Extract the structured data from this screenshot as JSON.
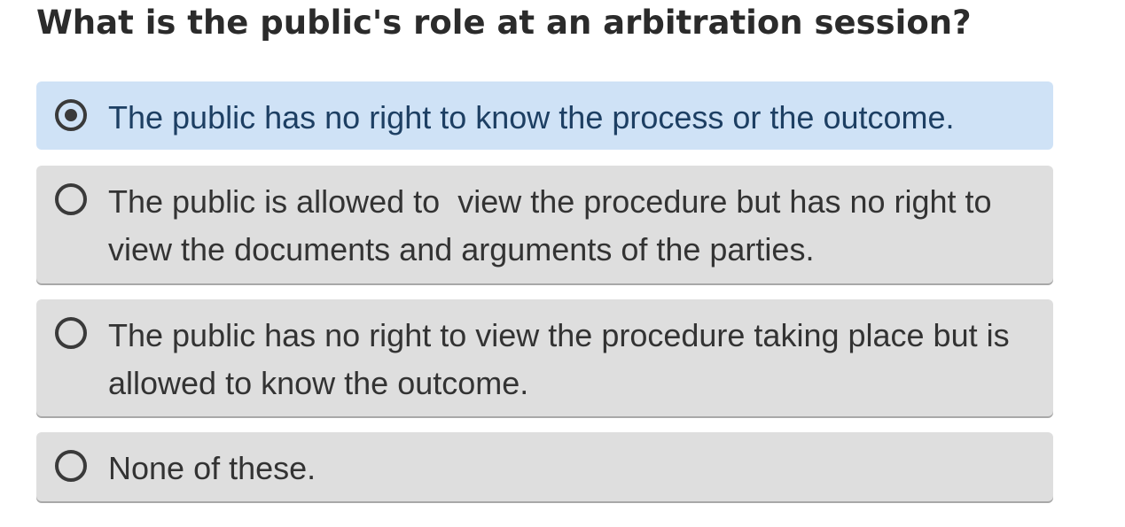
{
  "question": {
    "text": "What is the public's role at an arbitration session?"
  },
  "options": [
    {
      "label": "The public has no right to know the process or the outcome.",
      "selected": true
    },
    {
      "label": "The public is allowed to  view the procedure but has no right to view the documents and arguments of the parties.",
      "selected": false
    },
    {
      "label": "The public has no right to view the procedure taking place but is allowed to know the outcome.",
      "selected": false
    },
    {
      "label": "None of these.",
      "selected": false
    }
  ],
  "colors": {
    "selected_background": "#cfe2f6",
    "selected_text": "#1d3f63",
    "option_background": "#dedede",
    "text": "#333333"
  }
}
